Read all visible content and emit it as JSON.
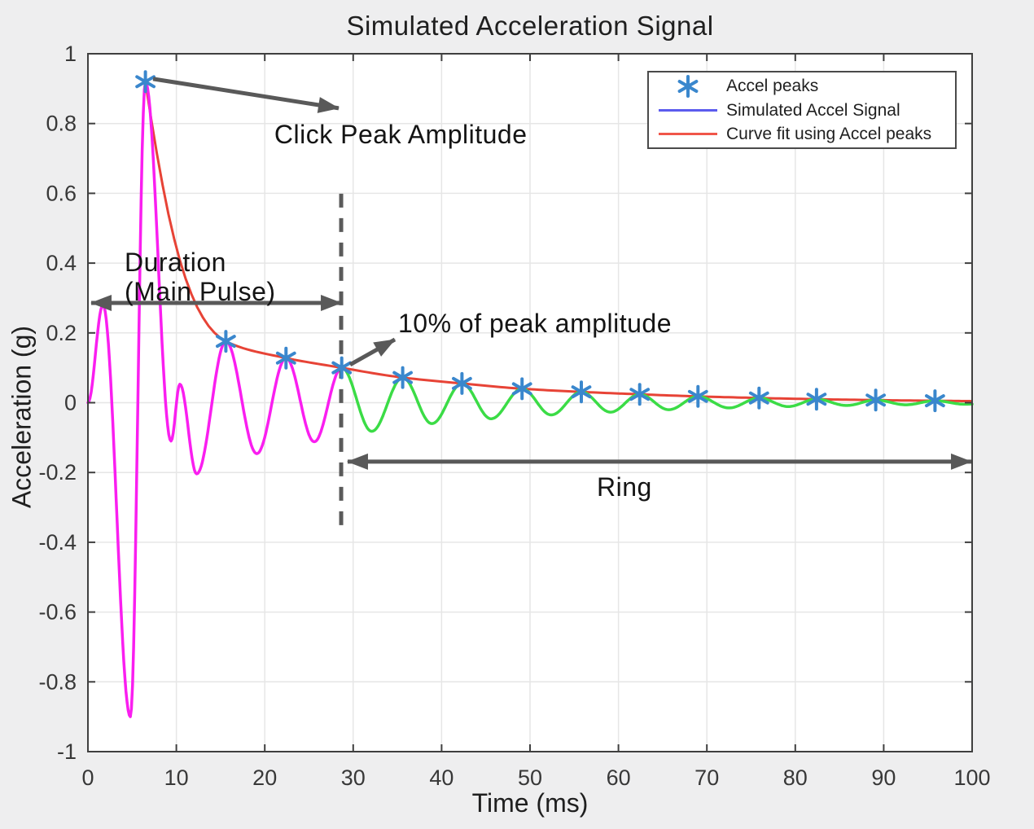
{
  "figure": {
    "title": "Simulated Acceleration Signal",
    "xlabel": "Time (ms)",
    "ylabel": "Acceleration (g)",
    "background": "#eeeeef",
    "plot_background": "#ffffff",
    "grid_color": "#e6e6e6",
    "axis_color": "#3f3f3f",
    "tick_label_color": "#383838",
    "annotation_color": "#595959"
  },
  "chart_data": {
    "type": "line",
    "title": "Simulated Acceleration Signal",
    "xlabel": "Time (ms)",
    "ylabel": "Acceleration (g)",
    "xlim": [
      0,
      100
    ],
    "ylim": [
      -1,
      1
    ],
    "grid": true,
    "legend_position": "top-right",
    "xticks": [
      0,
      10,
      20,
      30,
      40,
      50,
      60,
      70,
      80,
      90,
      100
    ],
    "xtick_labels": [
      "0",
      "10",
      "20",
      "30",
      "40",
      "50",
      "60",
      "70",
      "80",
      "90",
      "100"
    ],
    "yticks": [
      -1,
      -0.8,
      -0.6,
      -0.4,
      -0.2,
      0,
      0.2,
      0.4,
      0.6,
      0.8,
      1
    ],
    "ytick_labels": [
      "-1",
      "-0.8",
      "-0.6",
      "-0.4",
      "-0.2",
      "0",
      "0.2",
      "0.4",
      "0.6",
      "0.8",
      "1"
    ],
    "series": [
      {
        "name": "Accel peaks",
        "type": "scatter",
        "marker": "asterisk",
        "color": "#3a87cd",
        "points": [
          [
            6.5,
            0.92
          ],
          [
            15.6,
            0.176
          ],
          [
            22.4,
            0.128
          ],
          [
            28.7,
            0.1
          ],
          [
            35.6,
            0.072
          ],
          [
            42.3,
            0.055
          ],
          [
            49.1,
            0.04
          ],
          [
            55.8,
            0.031
          ],
          [
            62.4,
            0.024
          ],
          [
            69.0,
            0.018
          ],
          [
            75.9,
            0.0135
          ],
          [
            82.4,
            0.01
          ],
          [
            89.1,
            0.0075
          ],
          [
            95.8,
            0.0055
          ]
        ]
      },
      {
        "name": "Simulated Accel Signal",
        "type": "line",
        "legend_color": "#5b5bee",
        "split_time": 28.7,
        "color_before_split": "#fa1ef0",
        "color_after_split": "#3bdc46",
        "extrema": [
          [
            0,
            0
          ],
          [
            1.7,
            0.28
          ],
          [
            4.8,
            -0.9
          ],
          [
            6.5,
            0.92
          ],
          [
            9.4,
            -0.11
          ],
          [
            10.4,
            0.053
          ],
          [
            12.3,
            -0.204
          ],
          [
            15.6,
            0.176
          ],
          [
            19.1,
            -0.146
          ],
          [
            22.4,
            0.128
          ],
          [
            25.6,
            -0.112
          ],
          [
            28.7,
            0.1
          ],
          [
            32.1,
            -0.082
          ],
          [
            35.6,
            0.072
          ],
          [
            38.9,
            -0.06
          ],
          [
            42.3,
            0.055
          ],
          [
            45.6,
            -0.046
          ],
          [
            49.1,
            0.04
          ],
          [
            52.4,
            -0.035
          ],
          [
            55.8,
            0.031
          ],
          [
            59.1,
            -0.027
          ],
          [
            62.4,
            0.024
          ],
          [
            65.7,
            -0.02
          ],
          [
            69.0,
            0.018
          ],
          [
            72.5,
            -0.015
          ],
          [
            75.9,
            0.0135
          ],
          [
            79.2,
            -0.011
          ],
          [
            82.4,
            0.01
          ],
          [
            85.8,
            -0.008
          ],
          [
            89.1,
            0.0075
          ],
          [
            92.5,
            -0.006
          ],
          [
            95.8,
            0.0055
          ],
          [
            99.2,
            -0.0045
          ],
          [
            100,
            -0.004
          ]
        ]
      },
      {
        "name": "Curve fit using Accel peaks",
        "type": "line",
        "color": "#e74336",
        "legend_color": "#f0564a",
        "points": [
          [
            6.5,
            0.92
          ],
          [
            15.6,
            0.176
          ],
          [
            22.4,
            0.128
          ],
          [
            28.7,
            0.1
          ],
          [
            35.6,
            0.072
          ],
          [
            42.3,
            0.055
          ],
          [
            49.1,
            0.04
          ],
          [
            55.8,
            0.031
          ],
          [
            62.4,
            0.024
          ],
          [
            69.0,
            0.018
          ],
          [
            75.9,
            0.0135
          ],
          [
            82.4,
            0.01
          ],
          [
            89.1,
            0.0075
          ],
          [
            95.8,
            0.0055
          ],
          [
            100,
            0.0045
          ]
        ]
      }
    ],
    "threshold_line": {
      "x": 28.64,
      "y_from": -0.375,
      "y_to": 0.599,
      "style": "dashed",
      "color": "#5a5a5a"
    },
    "annotations": [
      {
        "id": "click-peak",
        "text": "Click Peak Amplitude",
        "text_pos": [
          21.08,
          0.811
        ],
        "arrow": {
          "from": [
            7.37,
            0.928
          ],
          "to": [
            28.36,
            0.844
          ],
          "heads": "end"
        }
      },
      {
        "id": "duration",
        "text": "Duration\n(Main Pulse)",
        "text_pos": [
          4.14,
          0.445
        ],
        "arrow": {
          "from": [
            0.37,
            0.286
          ],
          "to": [
            28.64,
            0.286
          ],
          "heads": "both"
        }
      },
      {
        "id": "ten-percent",
        "text": "10% of peak amplitude",
        "text_pos": [
          35.08,
          0.27
        ],
        "arrow": {
          "from": [
            29.65,
            0.109
          ],
          "to": [
            34.71,
            0.181
          ],
          "heads": "end"
        }
      },
      {
        "id": "ring",
        "text": "Ring",
        "text_pos": [
          57.55,
          -0.2
        ],
        "arrow": {
          "from": [
            29.37,
            -0.169
          ],
          "to": [
            99.91,
            -0.169
          ],
          "heads": "both"
        }
      }
    ]
  },
  "legend": {
    "entries": [
      {
        "label": "Accel peaks",
        "swatch": "asterisk",
        "color": "#3a87cd"
      },
      {
        "label": "Simulated Accel Signal",
        "swatch": "line",
        "color": "#5b5bee"
      },
      {
        "label": "Curve fit using Accel peaks",
        "swatch": "line",
        "color": "#f0564a"
      }
    ]
  }
}
